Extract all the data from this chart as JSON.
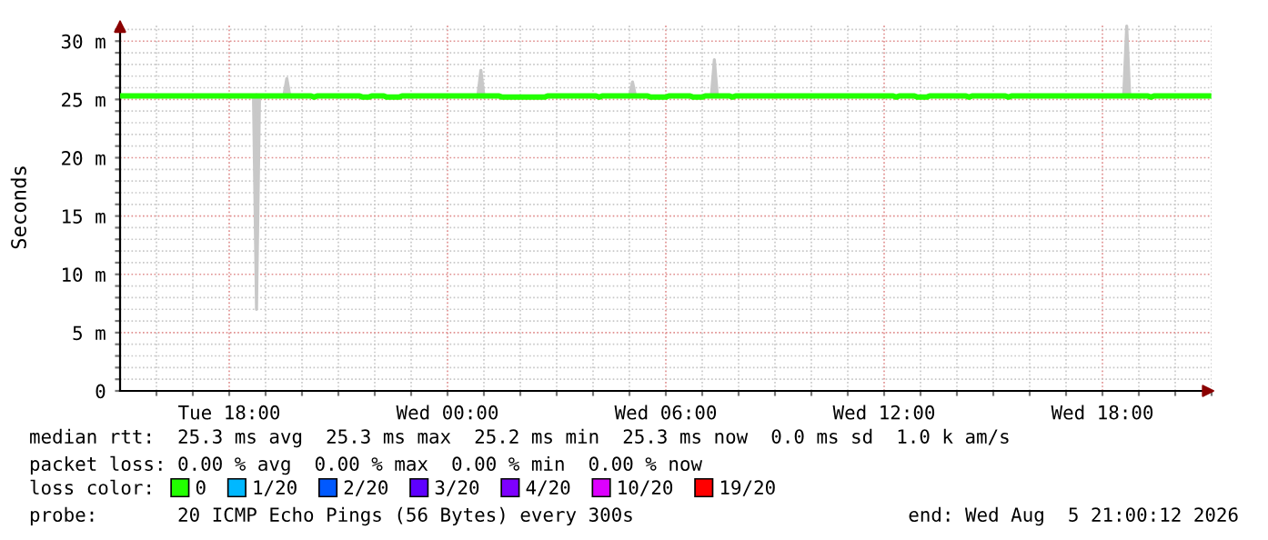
{
  "chart_data": {
    "type": "line",
    "ylabel": "Seconds",
    "x": [
      "2026-08-04T15:00",
      "2026-08-04T18:40",
      "2026-08-04T18:45",
      "2026-08-04T18:50",
      "2026-08-04T19:30",
      "2026-08-04T19:35",
      "2026-08-04T19:40",
      "2026-08-04T20:15",
      "2026-08-04T20:20",
      "2026-08-04T20:25",
      "2026-08-04T21:35",
      "2026-08-04T21:40",
      "2026-08-04T21:50",
      "2026-08-04T21:55",
      "2026-08-04T22:15",
      "2026-08-04T22:20",
      "2026-08-04T22:40",
      "2026-08-04T22:45",
      "2026-08-05T00:50",
      "2026-08-05T00:55",
      "2026-08-05T01:00",
      "2026-08-05T01:25",
      "2026-08-05T01:30",
      "2026-08-05T02:40",
      "2026-08-05T02:45",
      "2026-08-05T04:05",
      "2026-08-05T04:10",
      "2026-08-05T04:15",
      "2026-08-05T05:00",
      "2026-08-05T05:05",
      "2026-08-05T05:10",
      "2026-08-05T05:30",
      "2026-08-05T05:35",
      "2026-08-05T06:00",
      "2026-08-05T06:05",
      "2026-08-05T06:40",
      "2026-08-05T06:45",
      "2026-08-05T07:00",
      "2026-08-05T07:05",
      "2026-08-05T07:15",
      "2026-08-05T07:20",
      "2026-08-05T07:25",
      "2026-08-05T07:45",
      "2026-08-05T07:50",
      "2026-08-05T07:55",
      "2026-08-05T12:15",
      "2026-08-05T12:20",
      "2026-08-05T12:25",
      "2026-08-05T12:50",
      "2026-08-05T12:55",
      "2026-08-05T13:10",
      "2026-08-05T13:15",
      "2026-08-05T14:15",
      "2026-08-05T14:20",
      "2026-08-05T14:25",
      "2026-08-05T15:20",
      "2026-08-05T15:25",
      "2026-08-05T15:30",
      "2026-08-05T18:35",
      "2026-08-05T18:40",
      "2026-08-05T18:45",
      "2026-08-05T19:15",
      "2026-08-05T19:20",
      "2026-08-05T19:25",
      "2026-08-05T20:55"
    ],
    "series": [
      {
        "name": "0",
        "color": "#22ff00",
        "values": [
          25.3,
          25.3,
          25.3,
          25.3,
          25.3,
          25.3,
          25.3,
          25.3,
          25.2,
          25.3,
          25.3,
          25.2,
          25.2,
          25.3,
          25.3,
          25.2,
          25.2,
          25.3,
          25.3,
          25.3,
          25.3,
          25.3,
          25.2,
          25.2,
          25.3,
          25.3,
          25.2,
          25.3,
          25.3,
          25.3,
          25.3,
          25.3,
          25.2,
          25.2,
          25.3,
          25.3,
          25.2,
          25.2,
          25.3,
          25.3,
          25.3,
          25.3,
          25.3,
          25.2,
          25.3,
          25.3,
          25.2,
          25.3,
          25.3,
          25.2,
          25.2,
          25.3,
          25.3,
          25.2,
          25.3,
          25.3,
          25.2,
          25.3,
          25.3,
          25.3,
          25.3,
          25.3,
          25.2,
          25.3,
          25.3
        ],
        "lower": [
          25.3,
          25.3,
          7.0,
          25.3,
          25.3,
          25.3,
          25.3,
          25.3,
          25.2,
          25.3,
          25.3,
          25.2,
          25.2,
          25.3,
          25.3,
          25.2,
          25.2,
          25.3,
          25.3,
          25.3,
          25.3,
          25.3,
          25.2,
          25.2,
          25.3,
          25.3,
          25.2,
          25.3,
          25.3,
          25.3,
          25.3,
          25.3,
          25.2,
          25.2,
          25.3,
          25.3,
          25.2,
          25.2,
          25.3,
          25.3,
          25.3,
          25.3,
          25.3,
          25.2,
          25.3,
          25.3,
          25.2,
          25.3,
          25.3,
          25.2,
          25.2,
          25.3,
          25.3,
          25.2,
          25.3,
          25.3,
          25.2,
          25.3,
          25.3,
          25.3,
          25.3,
          25.3,
          25.2,
          25.3,
          25.3
        ],
        "upper": [
          25.3,
          25.3,
          25.4,
          25.3,
          25.3,
          26.8,
          25.3,
          25.3,
          25.2,
          25.3,
          25.3,
          25.2,
          25.2,
          25.3,
          25.3,
          25.2,
          25.2,
          25.3,
          25.3,
          27.5,
          25.3,
          25.3,
          25.2,
          25.2,
          25.3,
          25.3,
          25.2,
          25.3,
          25.3,
          26.5,
          25.3,
          25.3,
          25.2,
          25.2,
          25.3,
          25.3,
          25.2,
          25.2,
          25.3,
          25.3,
          28.4,
          25.3,
          25.3,
          25.2,
          25.3,
          25.3,
          25.2,
          25.3,
          25.3,
          25.2,
          25.2,
          25.3,
          25.3,
          25.2,
          25.3,
          25.3,
          25.2,
          25.3,
          25.3,
          31.3,
          25.3,
          25.3,
          25.2,
          25.3,
          25.3
        ]
      },
      {
        "name": "1/20",
        "color": "#00b8ff",
        "values": [
          null,
          null,
          null,
          null,
          null,
          null,
          null,
          null,
          null,
          null,
          null,
          null,
          null,
          null,
          null,
          null,
          null,
          null,
          null,
          null,
          null,
          null,
          null,
          null,
          null,
          null,
          null,
          null,
          null,
          null,
          null,
          null,
          null,
          null,
          null,
          null,
          null,
          null,
          null,
          null,
          null,
          null,
          null,
          null,
          null,
          null,
          null,
          null,
          null,
          null,
          null,
          null,
          null,
          null,
          null,
          null,
          null,
          null,
          null,
          null,
          null,
          null,
          null,
          null,
          null
        ]
      },
      {
        "name": "2/20",
        "color": "#0059ff",
        "values": [
          null,
          null,
          null,
          null,
          null,
          null,
          null,
          null,
          null,
          null,
          null,
          null,
          null,
          null,
          null,
          null,
          null,
          null,
          null,
          null,
          null,
          null,
          null,
          null,
          null,
          null,
          null,
          null,
          null,
          null,
          null,
          null,
          null,
          null,
          null,
          null,
          null,
          null,
          null,
          null,
          null,
          null,
          null,
          null,
          null,
          null,
          null,
          null,
          null,
          null,
          null,
          null,
          null,
          null,
          null,
          null,
          null,
          null,
          null,
          null,
          null,
          null,
          null,
          null,
          null
        ]
      },
      {
        "name": "3/20",
        "color": "#5e00ff",
        "values": [
          null,
          null,
          null,
          null,
          null,
          null,
          null,
          null,
          null,
          null,
          null,
          null,
          null,
          null,
          null,
          null,
          null,
          null,
          null,
          null,
          null,
          null,
          null,
          null,
          null,
          null,
          null,
          null,
          null,
          null,
          null,
          null,
          null,
          null,
          null,
          null,
          null,
          null,
          null,
          null,
          null,
          null,
          null,
          null,
          null,
          null,
          null,
          null,
          null,
          null,
          null,
          null,
          null,
          null,
          null,
          null,
          null,
          null,
          null,
          null,
          null,
          null,
          null,
          null,
          null
        ]
      },
      {
        "name": "4/20",
        "color": "#7e00ff",
        "values": [
          null,
          null,
          null,
          null,
          null,
          null,
          null,
          null,
          null,
          null,
          null,
          null,
          null,
          null,
          null,
          null,
          null,
          null,
          null,
          null,
          null,
          null,
          null,
          null,
          null,
          null,
          null,
          null,
          null,
          null,
          null,
          null,
          null,
          null,
          null,
          null,
          null,
          null,
          null,
          null,
          null,
          null,
          null,
          null,
          null,
          null,
          null,
          null,
          null,
          null,
          null,
          null,
          null,
          null,
          null,
          null,
          null,
          null,
          null,
          null,
          null,
          null,
          null,
          null,
          null
        ]
      },
      {
        "name": "10/20",
        "color": "#dd00ff",
        "values": [
          null,
          null,
          null,
          null,
          null,
          null,
          null,
          null,
          null,
          null,
          null,
          null,
          null,
          null,
          null,
          null,
          null,
          null,
          null,
          null,
          null,
          null,
          null,
          null,
          null,
          null,
          null,
          null,
          null,
          null,
          null,
          null,
          null,
          null,
          null,
          null,
          null,
          null,
          null,
          null,
          null,
          null,
          null,
          null,
          null,
          null,
          null,
          null,
          null,
          null,
          null,
          null,
          null,
          null,
          null,
          null,
          null,
          null,
          null,
          null,
          null,
          null,
          null,
          null,
          null
        ]
      },
      {
        "name": "19/20",
        "color": "#ff0000",
        "values": [
          null,
          null,
          null,
          null,
          null,
          null,
          null,
          null,
          null,
          null,
          null,
          null,
          null,
          null,
          null,
          null,
          null,
          null,
          null,
          null,
          null,
          null,
          null,
          null,
          null,
          null,
          null,
          null,
          null,
          null,
          null,
          null,
          null,
          null,
          null,
          null,
          null,
          null,
          null,
          null,
          null,
          null,
          null,
          null,
          null,
          null,
          null,
          null,
          null,
          null,
          null,
          null,
          null,
          null,
          null,
          null,
          null,
          null,
          null,
          null,
          null,
          null,
          null,
          null,
          null
        ]
      }
    ],
    "xlim": [
      "2026-08-04T15:00",
      "2026-08-05T21:00"
    ],
    "xticks": [
      {
        "value": "2026-08-04T16:00",
        "label": null
      },
      {
        "value": "2026-08-04T17:00",
        "label": null
      },
      {
        "value": "2026-08-04T18:00",
        "label": "Tue 18:00"
      },
      {
        "value": "2026-08-04T19:00",
        "label": null
      },
      {
        "value": "2026-08-04T20:00",
        "label": null
      },
      {
        "value": "2026-08-04T21:00",
        "label": null
      },
      {
        "value": "2026-08-04T22:00",
        "label": null
      },
      {
        "value": "2026-08-04T23:00",
        "label": null
      },
      {
        "value": "2026-08-05T00:00",
        "label": "Wed 00:00"
      },
      {
        "value": "2026-08-05T01:00",
        "label": null
      },
      {
        "value": "2026-08-05T02:00",
        "label": null
      },
      {
        "value": "2026-08-05T03:00",
        "label": null
      },
      {
        "value": "2026-08-05T04:00",
        "label": null
      },
      {
        "value": "2026-08-05T05:00",
        "label": null
      },
      {
        "value": "2026-08-05T06:00",
        "label": "Wed 06:00"
      },
      {
        "value": "2026-08-05T07:00",
        "label": null
      },
      {
        "value": "2026-08-05T08:00",
        "label": null
      },
      {
        "value": "2026-08-05T09:00",
        "label": null
      },
      {
        "value": "2026-08-05T10:00",
        "label": null
      },
      {
        "value": "2026-08-05T11:00",
        "label": null
      },
      {
        "value": "2026-08-05T12:00",
        "label": "Wed 12:00"
      },
      {
        "value": "2026-08-05T13:00",
        "label": null
      },
      {
        "value": "2026-08-05T14:00",
        "label": null
      },
      {
        "value": "2026-08-05T15:00",
        "label": null
      },
      {
        "value": "2026-08-05T16:00",
        "label": null
      },
      {
        "value": "2026-08-05T17:00",
        "label": null
      },
      {
        "value": "2026-08-05T18:00",
        "label": "Wed 18:00"
      },
      {
        "value": "2026-08-05T19:00",
        "label": null
      },
      {
        "value": "2026-08-05T20:00",
        "label": null
      },
      {
        "value": "2026-08-05T21:00",
        "label": null
      }
    ],
    "ylim": [
      0,
      31.5
    ],
    "yticks": [
      0,
      {
        "value": 1,
        "label": null
      },
      {
        "value": 2,
        "label": null
      },
      {
        "value": 3,
        "label": null
      },
      {
        "value": 4,
        "label": null
      },
      {
        "value": 5,
        "label": "5 m"
      },
      {
        "value": 6,
        "label": null
      },
      {
        "value": 7,
        "label": null
      },
      {
        "value": 8,
        "label": null
      },
      {
        "value": 9,
        "label": null
      },
      {
        "value": 10,
        "label": "10 m"
      },
      {
        "value": 11,
        "label": null
      },
      {
        "value": 12,
        "label": null
      },
      {
        "value": 13,
        "label": null
      },
      {
        "value": 14,
        "label": null
      },
      {
        "value": 15,
        "label": "15 m"
      },
      {
        "value": 16,
        "label": null
      },
      {
        "value": 17,
        "label": null
      },
      {
        "value": 18,
        "label": null
      },
      {
        "value": 19,
        "label": null
      },
      {
        "value": 20,
        "label": "20 m"
      },
      {
        "value": 21,
        "label": null
      },
      {
        "value": 22,
        "label": null
      },
      {
        "value": 23,
        "label": null
      },
      {
        "value": 24,
        "label": null
      },
      {
        "value": 25,
        "label": "25 m"
      },
      {
        "value": 26,
        "label": null
      },
      {
        "value": 27,
        "label": null
      },
      {
        "value": 28,
        "label": null
      },
      {
        "value": 29,
        "label": null
      },
      {
        "value": 30,
        "label": "30 m"
      },
      {
        "value": 31,
        "label": null
      }
    ],
    "grid": true,
    "legend": "bottom",
    "marker": "none",
    "line_style": "solid",
    "annotations": [
      "median rtt:  25.3 ms avg  25.3 ms max  25.2 ms min  25.3 ms now  0.0 ms sd  1.0 k am/s",
      "packet loss: 0.00 % avg  0.00 % max  0.00 % min  0.00 % now",
      "loss color:",
      "probe:       20 ICMP Echo Pings (56 Bytes) every 300s",
      "end: Wed Aug  5 21:00:12 2026"
    ]
  }
}
